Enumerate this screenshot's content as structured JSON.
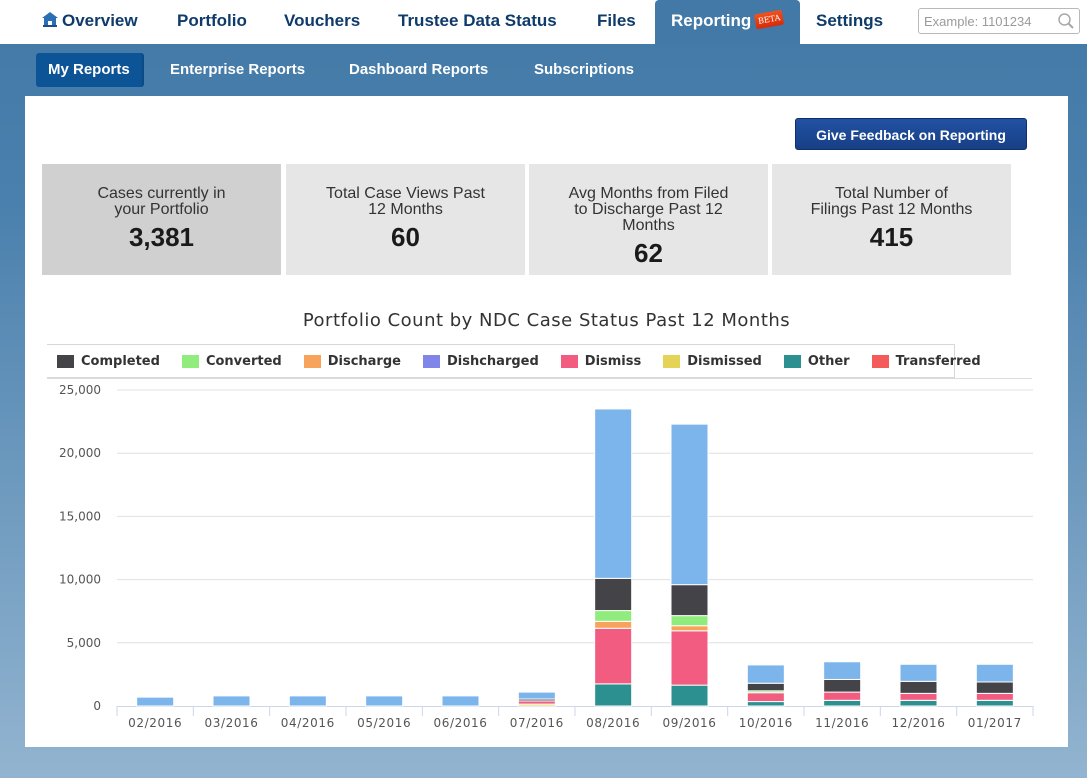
{
  "top_nav": {
    "items": [
      {
        "label": "Overview",
        "icon": "home-icon"
      },
      {
        "label": "Portfolio"
      },
      {
        "label": "Vouchers"
      },
      {
        "label": "Trustee Data Status"
      },
      {
        "label": "Files"
      },
      {
        "label": "Reporting",
        "badge": "BETA",
        "active": true
      },
      {
        "label": "Settings"
      }
    ],
    "search": {
      "placeholder": "Example: 1101234",
      "value": ""
    }
  },
  "sub_nav": {
    "items": [
      {
        "label": "My Reports",
        "active": true
      },
      {
        "label": "Enterprise Reports"
      },
      {
        "label": "Dashboard Reports"
      },
      {
        "label": "Subscriptions"
      }
    ]
  },
  "feedback_button": "Give Feedback on Reporting",
  "tiles": [
    {
      "label": "Cases currently in your Portfolio",
      "value": "3,381"
    },
    {
      "label": "Total Case Views Past 12 Months",
      "value": "60"
    },
    {
      "label": "Avg Months from Filed to Discharge Past 12 Months",
      "value": "62"
    },
    {
      "label": "Total Number of Filings Past 12 Months",
      "value": "415"
    }
  ],
  "chart_data": {
    "type": "bar",
    "stacked": true,
    "title": "Portfolio Count by NDC Case Status Past 12 Months",
    "xlabel": "",
    "ylabel": "",
    "ylim": [
      0,
      25000
    ],
    "yticks": [
      0,
      5000,
      10000,
      15000,
      20000,
      25000
    ],
    "ytick_labels": [
      "0",
      "5,000",
      "10,000",
      "15,000",
      "20,000",
      "25,000"
    ],
    "grid": true,
    "legend_position": "top",
    "categories": [
      "02/2016",
      "03/2016",
      "04/2016",
      "05/2016",
      "06/2016",
      "07/2016",
      "08/2016",
      "09/2016",
      "10/2016",
      "11/2016",
      "12/2016",
      "01/2017"
    ],
    "series": [
      {
        "name": "Other",
        "color": "#2b908f",
        "in_legend": true,
        "values": [
          0,
          0,
          0,
          0,
          0,
          0,
          1750,
          1650,
          350,
          450,
          450,
          450
        ]
      },
      {
        "name": "Dismissed",
        "color": "#e4d354",
        "in_legend": true,
        "values": [
          0,
          0,
          0,
          0,
          0,
          150,
          0,
          0,
          0,
          0,
          0,
          0
        ]
      },
      {
        "name": "Dismiss",
        "color": "#f15c80",
        "in_legend": true,
        "values": [
          0,
          0,
          0,
          0,
          0,
          250,
          4400,
          4300,
          700,
          650,
          550,
          550
        ]
      },
      {
        "name": "Transferred",
        "color": "#f45b5b",
        "in_legend": true,
        "values": [
          0,
          0,
          0,
          0,
          0,
          0,
          0,
          0,
          0,
          0,
          0,
          0
        ]
      },
      {
        "name": "Discharge",
        "color": "#f7a35c",
        "in_legend": true,
        "values": [
          0,
          0,
          0,
          0,
          0,
          0,
          550,
          400,
          0,
          0,
          0,
          0
        ]
      },
      {
        "name": "Dishcharged",
        "color": "#8085e9",
        "in_legend": true,
        "values": [
          0,
          0,
          0,
          0,
          0,
          0,
          0,
          0,
          0,
          0,
          0,
          0
        ]
      },
      {
        "name": "Converted",
        "color": "#90ed7d",
        "in_legend": true,
        "values": [
          0,
          0,
          0,
          0,
          0,
          0,
          850,
          800,
          150,
          0,
          0,
          0
        ]
      },
      {
        "name": "Completed",
        "color": "#434348",
        "in_legend": true,
        "values": [
          0,
          0,
          0,
          0,
          0,
          150,
          2550,
          2450,
          600,
          1000,
          950,
          900
        ]
      },
      {
        "name": "(unlabeled)",
        "color": "#7cb5ec",
        "in_legend": false,
        "values": [
          700,
          800,
          800,
          800,
          800,
          550,
          13400,
          12700,
          1450,
          1400,
          1350,
          1400
        ]
      }
    ],
    "legend_order": [
      "Completed",
      "Converted",
      "Discharge",
      "Dishcharged",
      "Dismiss",
      "Dismissed",
      "Other",
      "Transferred"
    ]
  }
}
